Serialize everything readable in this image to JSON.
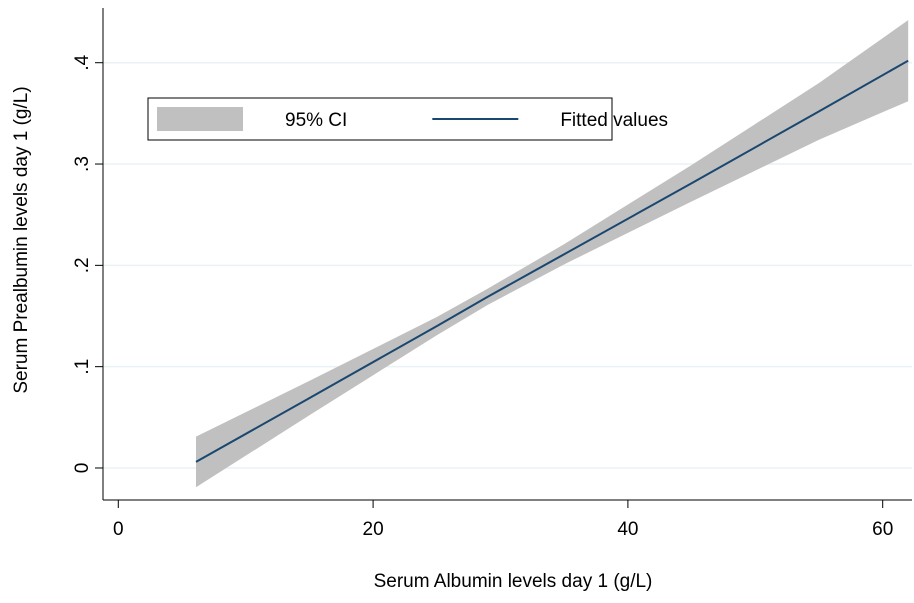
{
  "chart_data": {
    "type": "line",
    "xlabel": "Serum Albumin levels day 1 (g/L)",
    "ylabel": "Serum Prealbumin levels day 1 (g/L)",
    "x": [
      6.1,
      15,
      25,
      29,
      35,
      45,
      55,
      62
    ],
    "series": [
      {
        "name": "95% CI",
        "kind": "band",
        "color": "#c0c0c0",
        "lower": [
          -0.019,
          0.052,
          0.131,
          0.161,
          0.201,
          0.263,
          0.324,
          0.362
        ],
        "upper": [
          0.031,
          0.086,
          0.149,
          0.177,
          0.221,
          0.299,
          0.38,
          0.442
        ]
      },
      {
        "name": "Fitted values",
        "kind": "line",
        "color": "#1a476f",
        "values": [
          0.006,
          0.069,
          0.14,
          0.169,
          0.211,
          0.281,
          0.352,
          0.402
        ]
      }
    ],
    "xlim": [
      -1.2,
      62.3
    ],
    "xticks": [
      0,
      20,
      40,
      60
    ],
    "ylim": [
      -0.0316,
      0.454
    ],
    "yticks": [
      0,
      {
        "value": 0.1,
        "label": ".1"
      },
      {
        "value": 0.2,
        "label": ".2"
      },
      {
        "value": 0.3,
        "label": ".3"
      },
      {
        "value": 0.4,
        "label": ".4"
      }
    ],
    "grid": true,
    "legend": "top-left"
  }
}
